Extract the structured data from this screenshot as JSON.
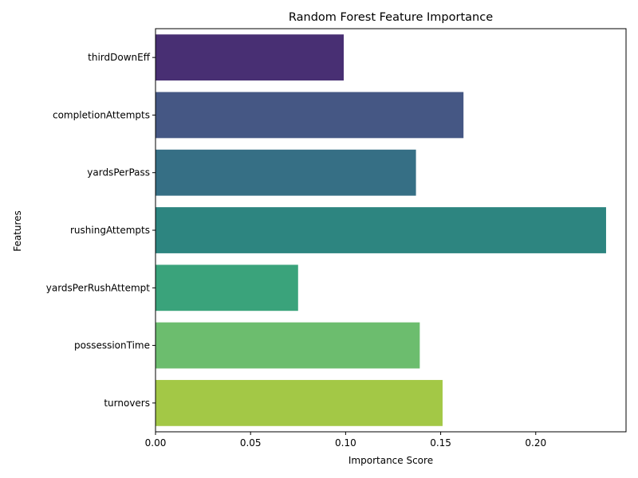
{
  "chart_data": {
    "type": "bar",
    "orientation": "horizontal",
    "title": "Random Forest Feature Importance",
    "xlabel": "Importance Score",
    "ylabel": "Features",
    "categories": [
      "thirdDownEff",
      "completionAttempts",
      "yardsPerPass",
      "rushingAttempts",
      "yardsPerRushAttempt",
      "possessionTime",
      "turnovers"
    ],
    "values": [
      0.099,
      0.162,
      0.137,
      0.237,
      0.075,
      0.139,
      0.151
    ],
    "colors": [
      "#482f73",
      "#455784",
      "#366f85",
      "#2d8580",
      "#3aa37b",
      "#6cbd6e",
      "#a3c846"
    ],
    "xlim": [
      0,
      0.2475
    ],
    "xticks": [
      0.0,
      0.05,
      0.1,
      0.15,
      0.2
    ],
    "xtick_labels": [
      "0.00",
      "0.05",
      "0.10",
      "0.15",
      "0.20"
    ],
    "grid": false,
    "legend": "none"
  }
}
